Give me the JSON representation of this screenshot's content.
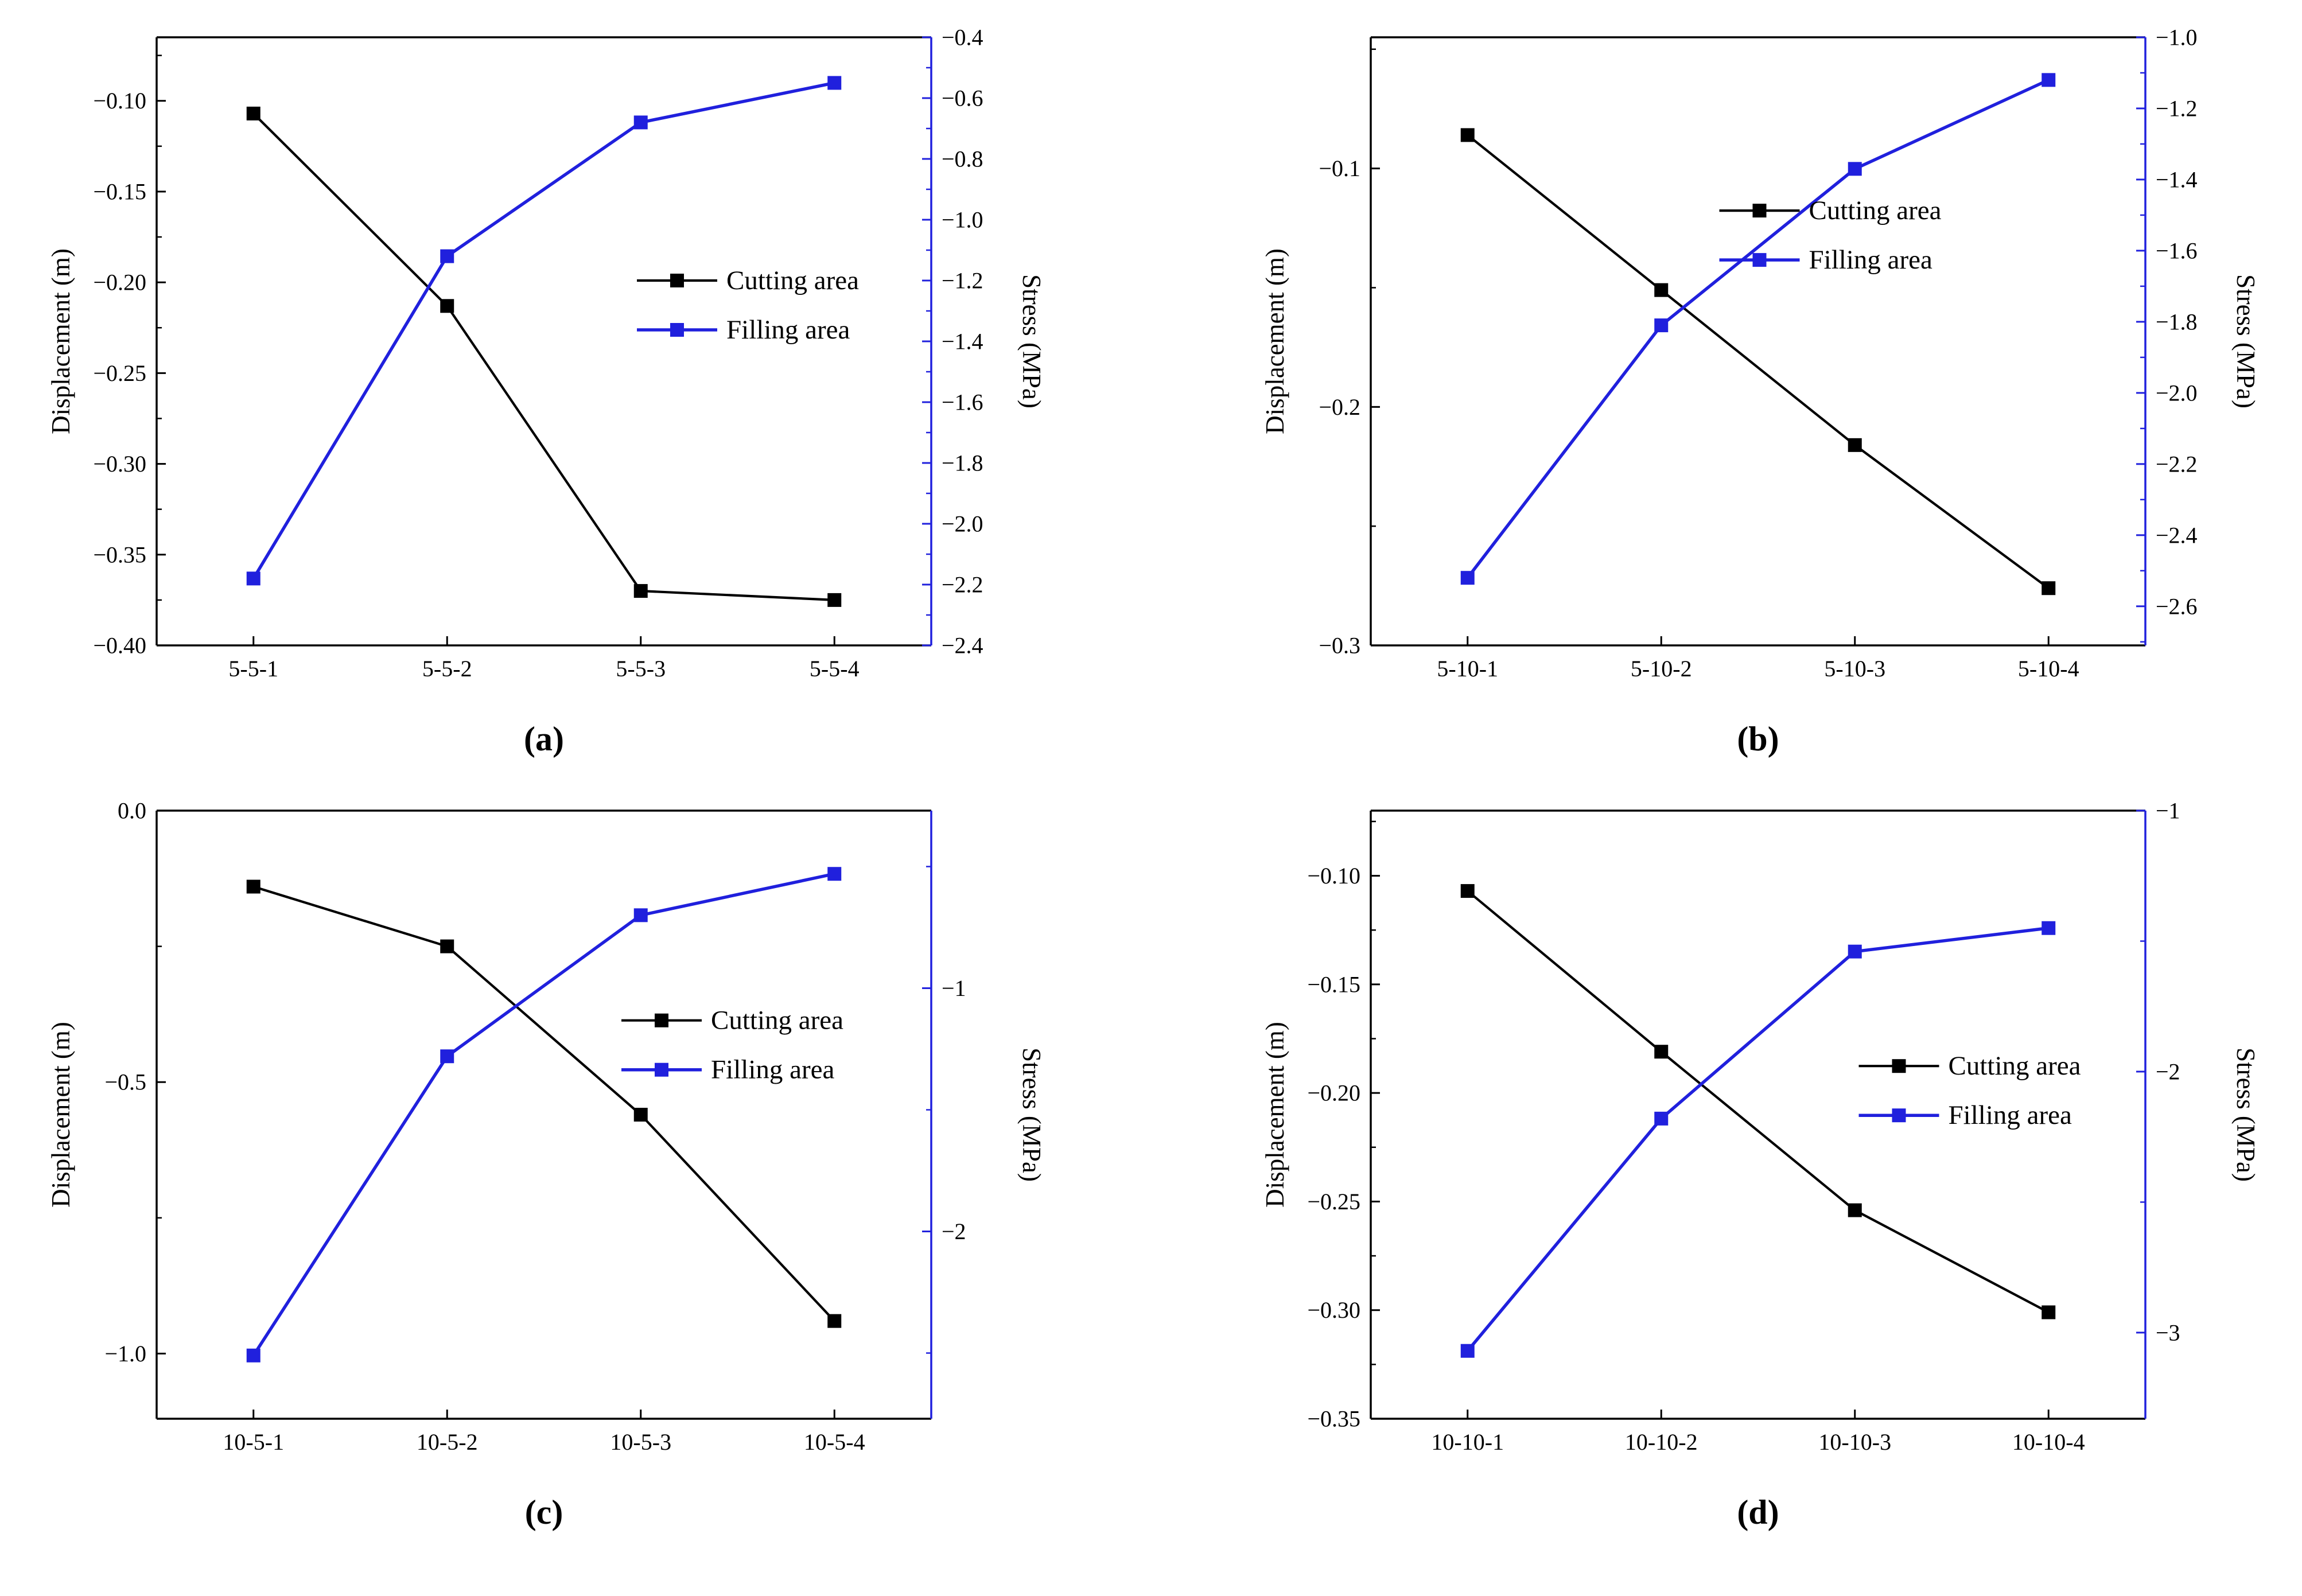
{
  "colors": {
    "cutting": "#000000",
    "filling": "#2020dd",
    "background": "#ffffff"
  },
  "chart_data": [
    {
      "id": "a",
      "panel_label": "(a)",
      "type": "line",
      "categories": [
        "5-5-1",
        "5-5-2",
        "5-5-3",
        "5-5-4"
      ],
      "left_axis": {
        "label": "Displacement (m)",
        "min": -0.4,
        "max": -0.065,
        "ticks": [
          -0.1,
          -0.15,
          -0.2,
          -0.25,
          -0.3,
          -0.35,
          -0.4
        ],
        "decimals": 2,
        "color": "#000000"
      },
      "right_axis": {
        "label": "Stress (MPa)",
        "min": -2.4,
        "max": -0.4,
        "ticks": [
          -0.4,
          -0.6,
          -0.8,
          -1.0,
          -1.2,
          -1.4,
          -1.6,
          -1.8,
          -2.0,
          -2.2,
          -2.4
        ],
        "decimals": 1,
        "color": "#2020dd"
      },
      "series": [
        {
          "name": "Cutting area",
          "axis": "left",
          "color": "#000000",
          "values": [
            -0.107,
            -0.213,
            -0.37,
            -0.375
          ]
        },
        {
          "name": "Filling area",
          "axis": "right",
          "color": "#2020dd",
          "values": [
            -2.18,
            -1.12,
            -0.68,
            -0.55
          ]
        }
      ],
      "legend": {
        "position": "center-right",
        "x": 0.62,
        "y": 0.4
      }
    },
    {
      "id": "b",
      "panel_label": "(b)",
      "type": "line",
      "categories": [
        "5-10-1",
        "5-10-2",
        "5-10-3",
        "5-10-4"
      ],
      "left_axis": {
        "label": "Displacement (m)",
        "min": -0.3,
        "max": -0.045,
        "ticks": [
          -0.1,
          -0.2,
          -0.3
        ],
        "decimals": 1,
        "color": "#000000"
      },
      "right_axis": {
        "label": "Stress (MPa)",
        "min": -2.71,
        "max": -1.0,
        "ticks": [
          -1.0,
          -1.2,
          -1.4,
          -1.6,
          -1.8,
          -2.0,
          -2.2,
          -2.4,
          -2.6
        ],
        "decimals": 1,
        "color": "#2020dd"
      },
      "series": [
        {
          "name": "Cutting area",
          "axis": "left",
          "color": "#000000",
          "values": [
            -0.086,
            -0.151,
            -0.216,
            -0.276
          ]
        },
        {
          "name": "Filling area",
          "axis": "right",
          "color": "#2020dd",
          "values": [
            -2.52,
            -1.81,
            -1.37,
            -1.12
          ]
        }
      ],
      "legend": {
        "position": "center-right",
        "x": 0.45,
        "y": 0.285
      }
    },
    {
      "id": "c",
      "panel_label": "(c)",
      "type": "line",
      "categories": [
        "10-5-1",
        "10-5-2",
        "10-5-3",
        "10-5-4"
      ],
      "left_axis": {
        "label": "Displacement (m)",
        "min": -1.12,
        "max": 0.0,
        "ticks": [
          0.0,
          -0.5,
          -1.0
        ],
        "decimals": 1,
        "color": "#000000"
      },
      "right_axis": {
        "label": "Stress (MPa)",
        "min": -2.77,
        "max": -0.27,
        "ticks": [
          -1,
          -2
        ],
        "decimals": 0,
        "color": "#2020dd"
      },
      "series": [
        {
          "name": "Cutting area",
          "axis": "left",
          "color": "#000000",
          "values": [
            -0.14,
            -0.25,
            -0.56,
            -0.94
          ]
        },
        {
          "name": "Filling area",
          "axis": "right",
          "color": "#2020dd",
          "values": [
            -2.51,
            -1.28,
            -0.7,
            -0.53
          ]
        }
      ],
      "legend": {
        "position": "center-right",
        "x": 0.6,
        "y": 0.345
      }
    },
    {
      "id": "d",
      "panel_label": "(d)",
      "type": "line",
      "categories": [
        "10-10-1",
        "10-10-2",
        "10-10-3",
        "10-10-4"
      ],
      "left_axis": {
        "label": "Displacement (m)",
        "min": -0.35,
        "max": -0.07,
        "ticks": [
          -0.1,
          -0.15,
          -0.2,
          -0.25,
          -0.3,
          -0.35
        ],
        "decimals": 2,
        "color": "#000000"
      },
      "right_axis": {
        "label": "Stress (MPa)",
        "min": -3.33,
        "max": -1.0,
        "ticks": [
          -1,
          -2,
          -3
        ],
        "decimals": 0,
        "color": "#2020dd"
      },
      "series": [
        {
          "name": "Cutting area",
          "axis": "left",
          "color": "#000000",
          "values": [
            -0.107,
            -0.181,
            -0.254,
            -0.301
          ]
        },
        {
          "name": "Filling area",
          "axis": "right",
          "color": "#2020dd",
          "values": [
            -3.07,
            -2.18,
            -1.54,
            -1.45
          ]
        }
      ],
      "legend": {
        "position": "center-right",
        "x": 0.63,
        "y": 0.42
      }
    }
  ]
}
